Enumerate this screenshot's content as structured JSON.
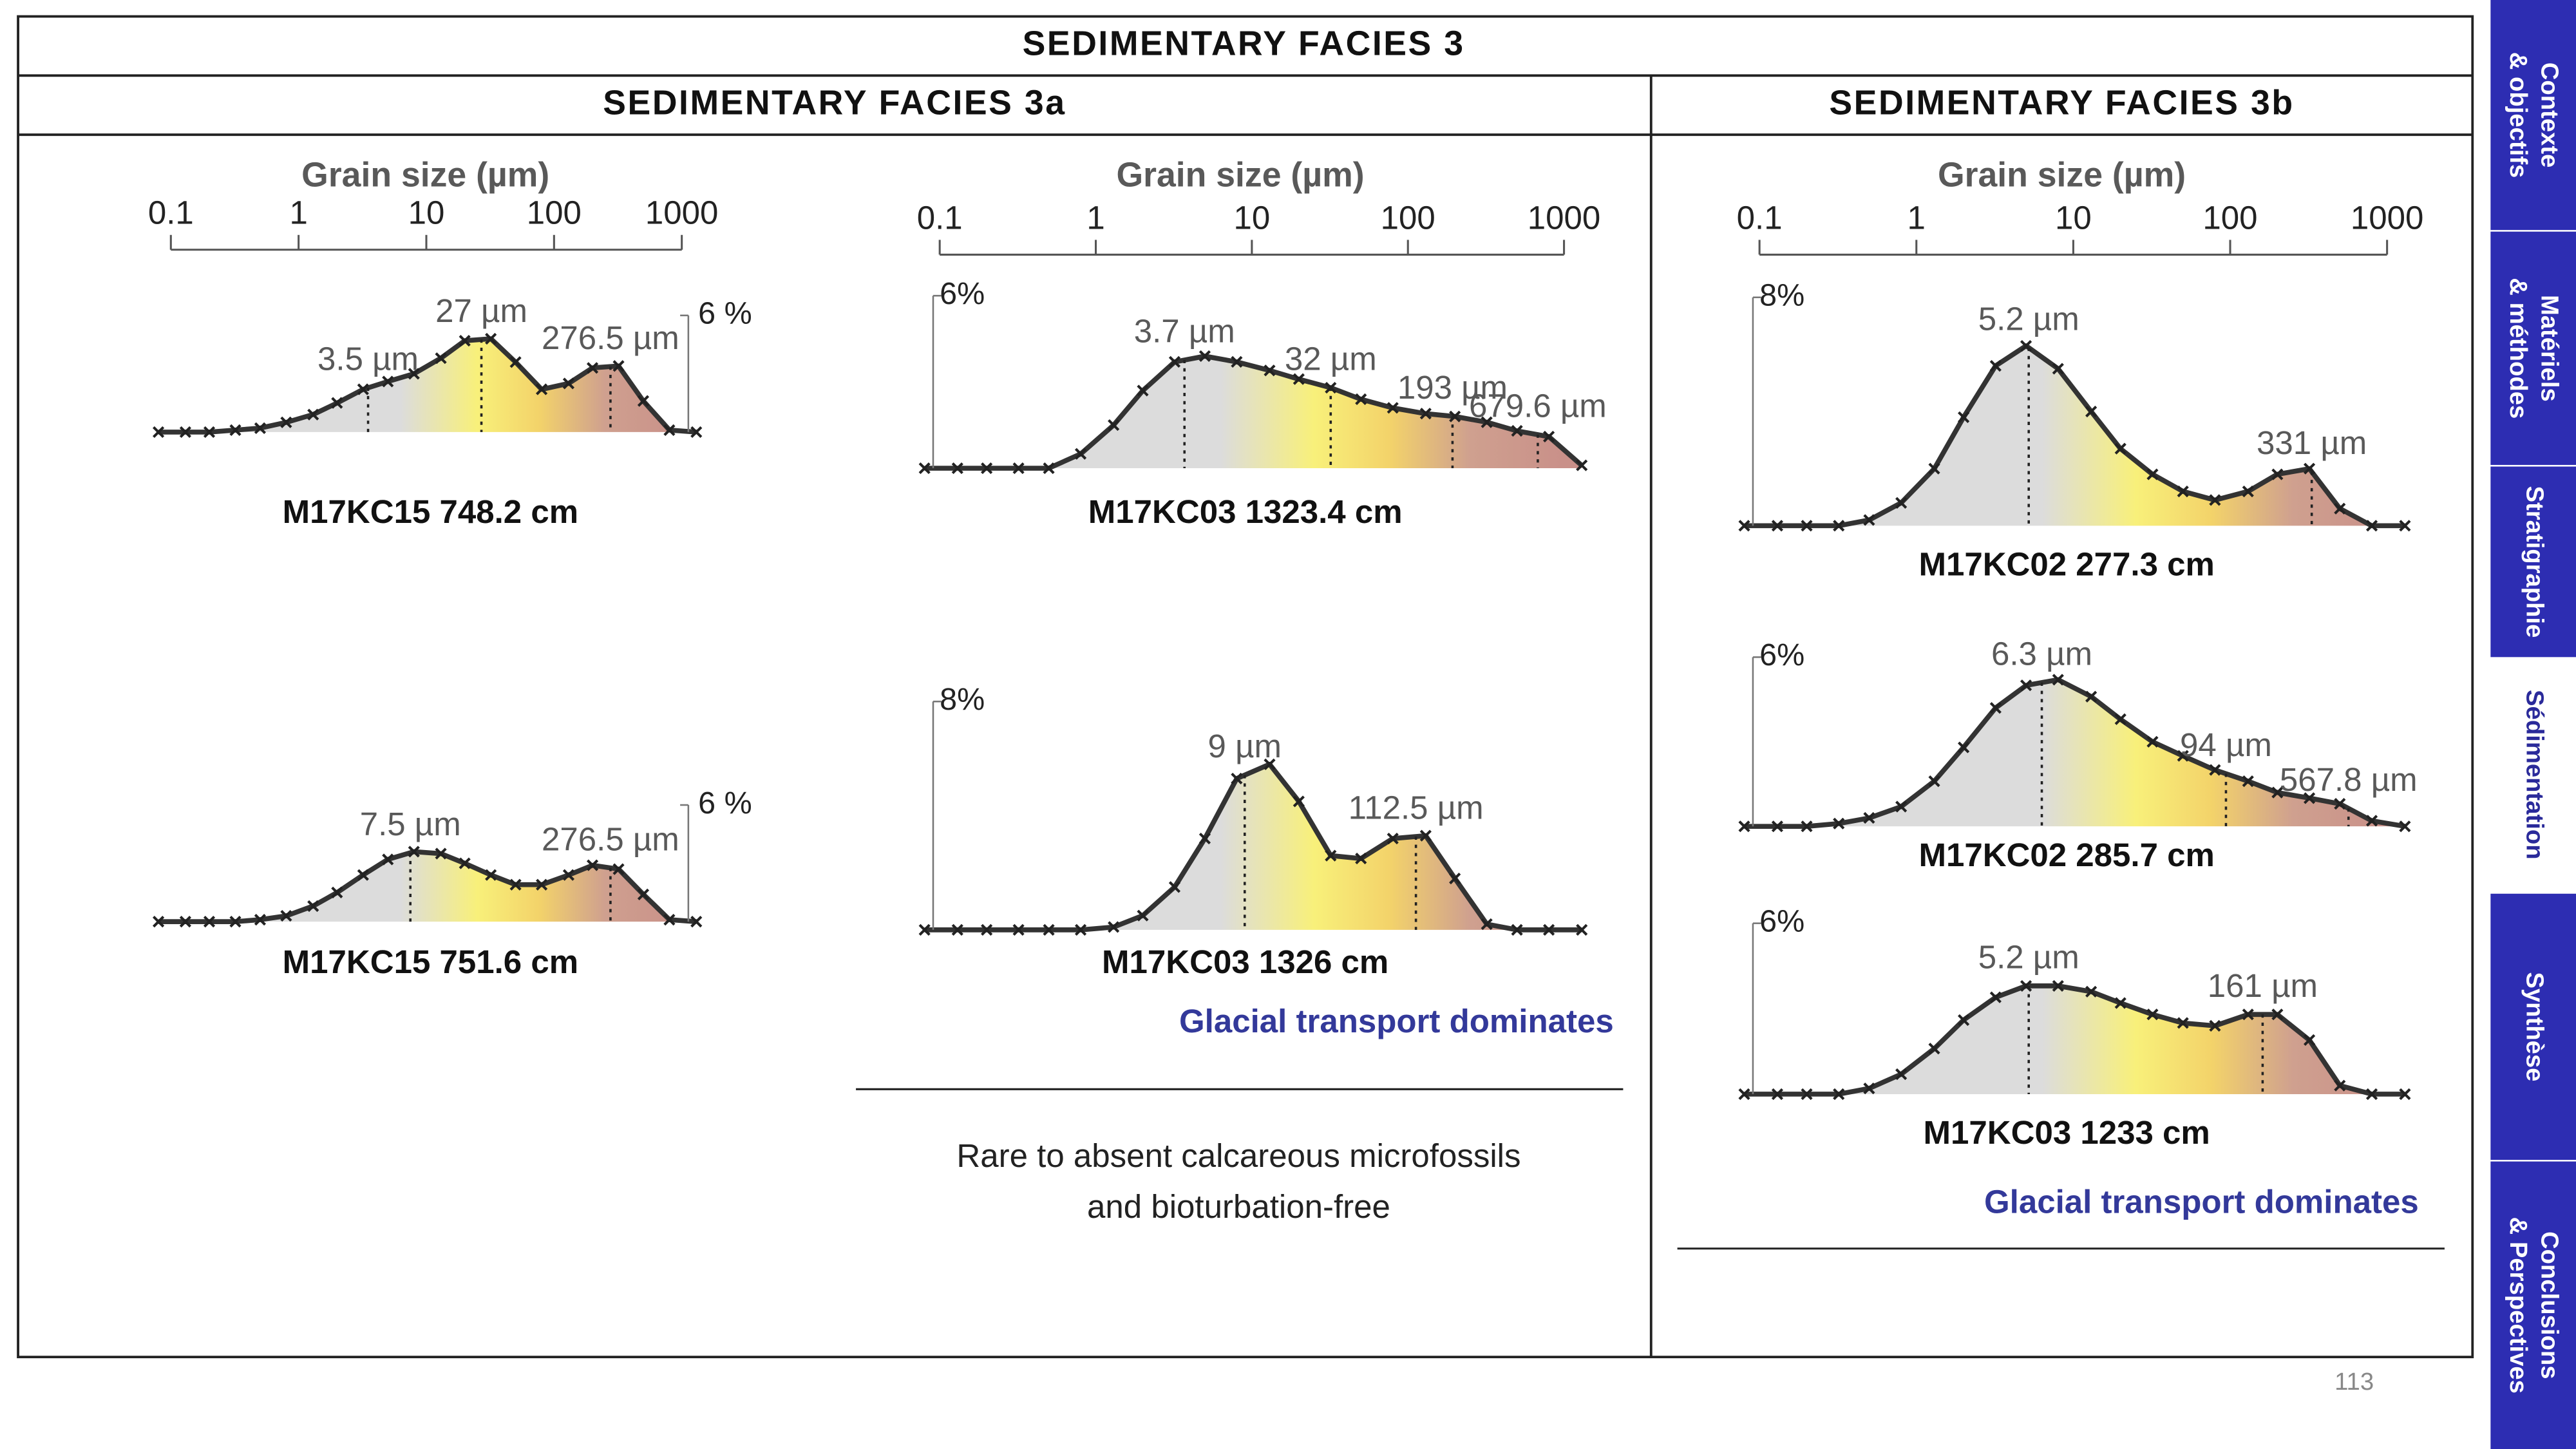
{
  "header": {
    "title": "SEDIMENTARY FACIES 3"
  },
  "sections": [
    {
      "title": "SEDIMENTARY FACIES 3a",
      "note": "Glacial transport dominates",
      "description": [
        "Rare to absent calcareous microfossils",
        "and bioturbation-free"
      ]
    },
    {
      "title": "SEDIMENTARY FACIES 3b",
      "note": "Glacial transport dominates"
    }
  ],
  "axis": {
    "label": "Grain size (µm)",
    "xlim": [
      0.1,
      1000
    ],
    "xticks": [
      0.1,
      1,
      10,
      100,
      1000
    ],
    "log_scale": true
  },
  "x_um": [
    0.08,
    0.13,
    0.2,
    0.32,
    0.5,
    0.8,
    1.3,
    2,
    3.2,
    5,
    8,
    13,
    20,
    32,
    50,
    80,
    130,
    200,
    320,
    500,
    800,
    1300
  ],
  "panels": [
    {
      "label": "M17KC15 748.2 cm",
      "ylim": [
        0,
        6
      ],
      "yticks": [
        {
          "value": 6,
          "label": "6 %"
        }
      ],
      "values": [
        0,
        0,
        0,
        0.1,
        0.2,
        0.5,
        0.9,
        1.5,
        2.2,
        2.6,
        3.0,
        3.8,
        4.7,
        4.8,
        3.6,
        2.2,
        2.5,
        3.3,
        3.4,
        1.6,
        0.1,
        0
      ],
      "peaks": [
        {
          "value": 3.5,
          "label": "3.5 µm"
        },
        {
          "value": 27,
          "label": "27 µm"
        },
        {
          "value": 276.5,
          "label": "276.5 µm"
        }
      ]
    },
    {
      "label": "M17KC15 751.6 cm",
      "ylim": [
        0,
        6
      ],
      "yticks": [
        {
          "value": 6,
          "label": "6 %"
        }
      ],
      "values": [
        0,
        0,
        0,
        0,
        0.1,
        0.3,
        0.8,
        1.5,
        2.4,
        3.2,
        3.6,
        3.5,
        3.0,
        2.4,
        1.9,
        1.9,
        2.4,
        2.9,
        2.7,
        1.4,
        0.1,
        0
      ],
      "peaks": [
        {
          "value": 7.5,
          "label": "7.5 µm"
        },
        {
          "value": 276.5,
          "label": "276.5 µm"
        }
      ]
    },
    {
      "label": "M17KC03 1323.4 cm",
      "ylim": [
        0,
        6
      ],
      "yticks": [
        {
          "value": 6,
          "label": "6%"
        }
      ],
      "values": [
        0,
        0,
        0,
        0,
        0,
        0.5,
        1.5,
        2.7,
        3.7,
        3.9,
        3.7,
        3.4,
        3.1,
        2.8,
        2.4,
        2.1,
        1.9,
        1.8,
        1.6,
        1.3,
        1.1,
        0.1
      ],
      "peaks": [
        {
          "value": 3.7,
          "label": "3.7 µm"
        },
        {
          "value": 32,
          "label": "32 µm"
        },
        {
          "value": 193,
          "label": "193 µm"
        },
        {
          "value": 679.6,
          "label": "679.6 µm"
        }
      ]
    },
    {
      "label": "M17KC03 1326 cm",
      "ylim": [
        0,
        8
      ],
      "yticks": [
        {
          "value": 8,
          "label": "8%"
        }
      ],
      "values": [
        0,
        0,
        0,
        0,
        0,
        0,
        0.1,
        0.5,
        1.5,
        3.2,
        5.3,
        5.8,
        4.5,
        2.6,
        2.5,
        3.2,
        3.3,
        1.8,
        0.2,
        0,
        0,
        0
      ],
      "peaks": [
        {
          "value": 9,
          "label": "9 µm"
        },
        {
          "value": 112.5,
          "label": "112.5 µm"
        }
      ]
    },
    {
      "label": "M17KC02 277.3 cm",
      "ylim": [
        0,
        8
      ],
      "yticks": [
        {
          "value": 8,
          "label": "8%"
        }
      ],
      "values": [
        0,
        0,
        0,
        0,
        0.2,
        0.8,
        2.0,
        3.8,
        5.6,
        6.3,
        5.5,
        4.0,
        2.7,
        1.8,
        1.2,
        0.9,
        1.2,
        1.8,
        2.0,
        0.6,
        0,
        0
      ],
      "peaks": [
        {
          "value": 5.2,
          "label": "5.2 µm"
        },
        {
          "value": 331,
          "label": "331 µm"
        }
      ]
    },
    {
      "label": "M17KC02 285.7 cm",
      "ylim": [
        0,
        6
      ],
      "yticks": [
        {
          "value": 6,
          "label": "6%"
        }
      ],
      "values": [
        0,
        0,
        0,
        0.1,
        0.3,
        0.7,
        1.6,
        2.8,
        4.2,
        5.0,
        5.2,
        4.6,
        3.8,
        3.0,
        2.5,
        2.0,
        1.6,
        1.2,
        1.0,
        0.8,
        0.2,
        0
      ],
      "peaks": [
        {
          "value": 6.3,
          "label": "6.3 µm"
        },
        {
          "value": 94,
          "label": "94 µm"
        },
        {
          "value": 567.8,
          "label": "567.8 µm"
        }
      ]
    },
    {
      "label": "M17KC03 1233 cm",
      "ylim": [
        0,
        6
      ],
      "yticks": [
        {
          "value": 6,
          "label": "6%"
        }
      ],
      "values": [
        0,
        0,
        0,
        0,
        0.2,
        0.7,
        1.6,
        2.6,
        3.4,
        3.8,
        3.8,
        3.6,
        3.2,
        2.8,
        2.5,
        2.4,
        2.8,
        2.8,
        1.9,
        0.3,
        0,
        0
      ],
      "peaks": [
        {
          "value": 5.2,
          "label": "5.2 µm"
        },
        {
          "value": 161,
          "label": "161 µm"
        }
      ]
    }
  ],
  "nav": {
    "active_tab": 3,
    "tabs": [
      [
        "Contexte",
        "& objectifs"
      ],
      [
        "Matériels",
        "& méthodes"
      ],
      [
        "Stratigraphie"
      ],
      [
        "Sédimentation"
      ],
      [
        "Synthèse"
      ],
      [
        "Conclusions",
        "& Perspectives"
      ]
    ]
  },
  "page_number": 113
}
